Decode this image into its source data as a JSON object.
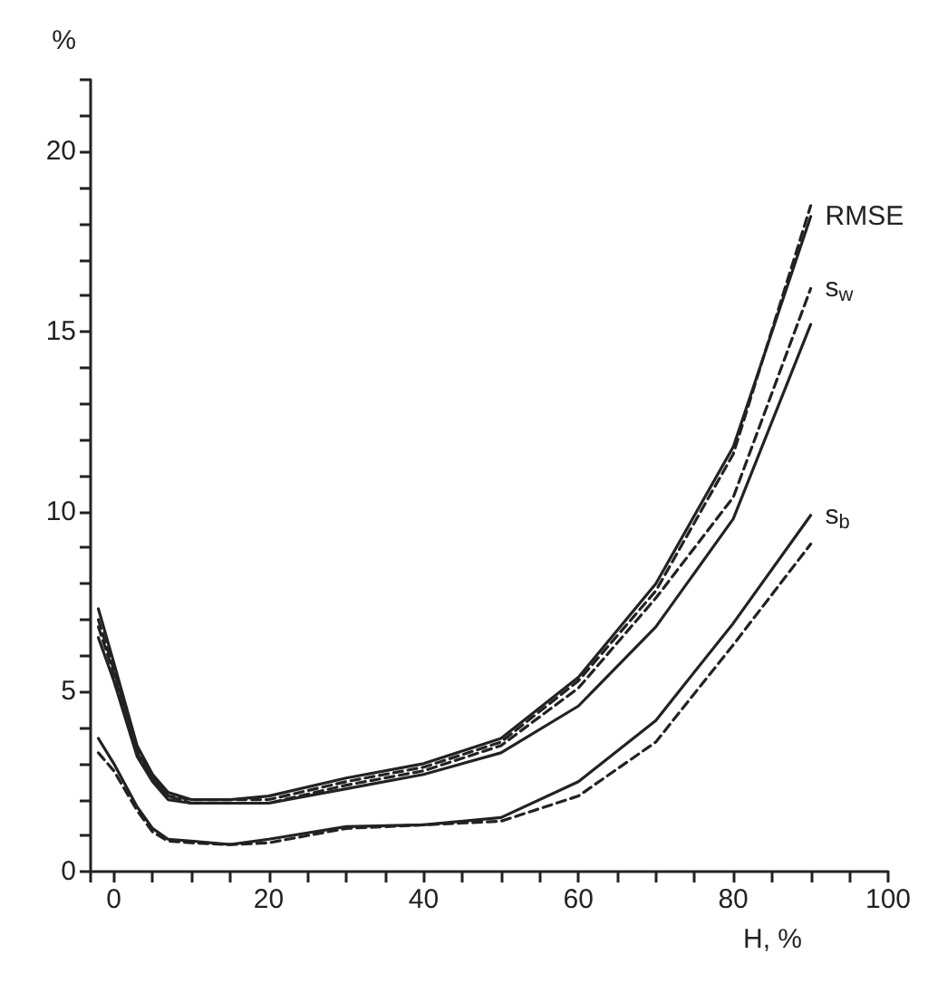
{
  "chart_data": {
    "type": "line",
    "xlabel": "H, %",
    "ylabel": "%",
    "x": [
      -2,
      0,
      3,
      5,
      7,
      10,
      15,
      20,
      30,
      40,
      50,
      60,
      70,
      80,
      90
    ],
    "series": [
      {
        "name": "RMSE",
        "color": "#222222",
        "line_style": "solid",
        "values": [
          7.3,
          5.8,
          3.5,
          2.7,
          2.2,
          2.0,
          2.0,
          2.1,
          2.6,
          3.0,
          3.7,
          5.4,
          8.0,
          11.8,
          18.2
        ]
      },
      {
        "color": "#222222",
        "line_style": "dashed",
        "values": [
          7.0,
          5.6,
          3.4,
          2.6,
          2.1,
          2.0,
          2.0,
          2.0,
          2.5,
          2.9,
          3.6,
          5.3,
          7.8,
          11.6,
          18.5
        ]
      },
      {
        "color": "#222222",
        "line_style": "solid",
        "values": [
          6.5,
          5.3,
          3.2,
          2.5,
          2.0,
          1.9,
          1.9,
          1.9,
          2.3,
          2.7,
          3.3,
          4.6,
          6.8,
          9.8,
          15.2
        ]
      },
      {
        "name": "s$_{w}$",
        "color": "#222222",
        "line_style": "dashed",
        "values": [
          6.8,
          5.5,
          3.3,
          2.6,
          2.1,
          1.9,
          1.9,
          1.9,
          2.4,
          2.8,
          3.5,
          5.1,
          7.6,
          10.4,
          16.2
        ]
      },
      {
        "name": "s$_{b}$",
        "color": "#222222",
        "line_style": "solid",
        "values": [
          3.7,
          3.0,
          1.8,
          1.2,
          0.9,
          0.85,
          0.75,
          0.9,
          1.25,
          1.3,
          1.5,
          2.5,
          4.2,
          6.9,
          9.9
        ]
      },
      {
        "color": "#222222",
        "line_style": "dashed",
        "values": [
          3.3,
          2.8,
          1.7,
          1.1,
          0.85,
          0.8,
          0.75,
          0.8,
          1.2,
          1.3,
          1.4,
          2.1,
          3.6,
          6.3,
          9.1
        ]
      }
    ],
    "xlim": [
      -3,
      100
    ],
    "xticks": [
      {
        "value": -3,
        "label": null
      },
      0,
      {
        "value": 5,
        "label": null
      },
      {
        "value": 10,
        "label": null
      },
      {
        "value": 15,
        "label": null
      },
      20,
      {
        "value": 25,
        "label": null
      },
      {
        "value": 30,
        "label": null
      },
      {
        "value": 35,
        "label": null
      },
      40,
      {
        "value": 45,
        "label": null
      },
      {
        "value": 50,
        "label": null
      },
      {
        "value": 55,
        "label": null
      },
      60,
      {
        "value": 65,
        "label": null
      },
      {
        "value": 70,
        "label": null
      },
      {
        "value": 75,
        "label": null
      },
      80,
      {
        "value": 85,
        "label": null
      },
      {
        "value": 90,
        "label": null
      },
      {
        "value": 95,
        "label": null
      },
      100
    ],
    "ylim": [
      0,
      22
    ],
    "yticks": [
      0,
      {
        "value": 1,
        "label": null
      },
      {
        "value": 2,
        "label": null
      },
      {
        "value": 3,
        "label": null
      },
      {
        "value": 4,
        "label": null
      },
      5,
      {
        "value": 6,
        "label": null
      },
      {
        "value": 7,
        "label": null
      },
      {
        "value": 8,
        "label": null
      },
      {
        "value": 9,
        "label": null
      },
      10,
      {
        "value": 11,
        "label": null
      },
      {
        "value": 12,
        "label": null
      },
      {
        "value": 13,
        "label": null
      },
      {
        "value": 14,
        "label": null
      },
      15,
      {
        "value": 16,
        "label": null
      },
      {
        "value": 17,
        "label": null
      },
      {
        "value": 18,
        "label": null
      },
      {
        "value": 19,
        "label": null
      },
      20,
      {
        "value": 21,
        "label": null
      },
      {
        "value": 22,
        "label": null
      }
    ],
    "grid": false,
    "legend": false,
    "marker": "none"
  }
}
